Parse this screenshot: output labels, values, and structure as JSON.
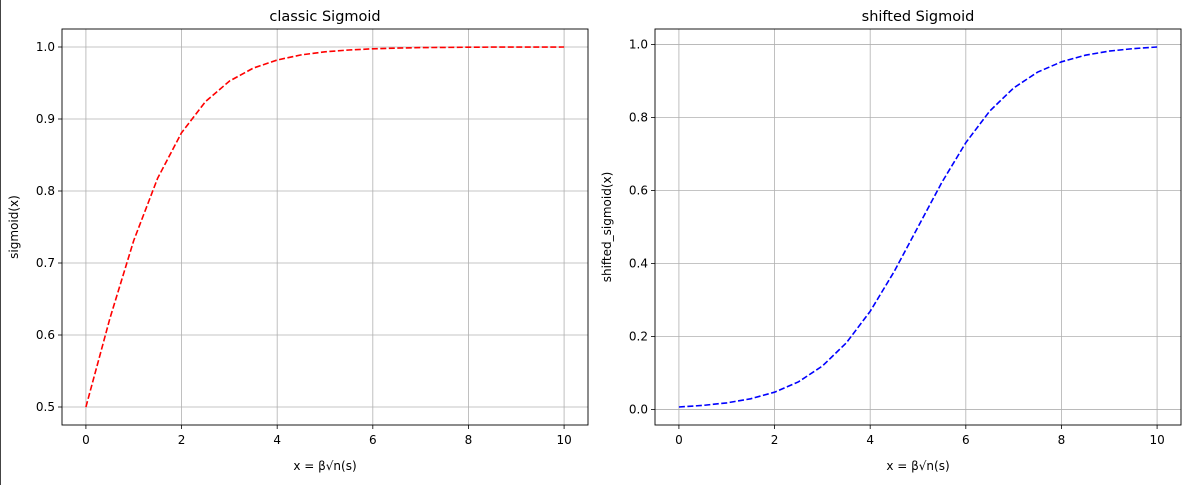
{
  "chart_data": [
    {
      "type": "line",
      "title": "classic Sigmoid",
      "xlabel": "x = β√n(s)",
      "ylabel": "sigmoid(x)",
      "xlim": [
        -0.5,
        10.5
      ],
      "ylim": [
        0.475,
        1.025
      ],
      "xticks": [
        0,
        2,
        4,
        6,
        8,
        10
      ],
      "xtick_labels": [
        "0",
        "2",
        "4",
        "6",
        "8",
        "10"
      ],
      "yticks": [
        0.5,
        0.6,
        0.7,
        0.8,
        0.9,
        1.0
      ],
      "ytick_labels": [
        "0.5",
        "0.6",
        "0.7",
        "0.8",
        "0.9",
        "1.0"
      ],
      "grid": true,
      "series": [
        {
          "name": "sigmoid",
          "color": "#ff0000",
          "style": "dashed",
          "x": [
            0,
            0.5,
            1,
            1.5,
            2,
            2.5,
            3,
            3.5,
            4,
            4.5,
            5,
            5.5,
            6,
            6.5,
            7,
            7.5,
            8,
            8.5,
            9,
            9.5,
            10
          ],
          "y": [
            0.5,
            0.6225,
            0.7311,
            0.8176,
            0.8808,
            0.9241,
            0.9526,
            0.9707,
            0.982,
            0.989,
            0.9933,
            0.9959,
            0.9975,
            0.9985,
            0.9991,
            0.9994,
            0.9997,
            0.9998,
            0.9999,
            0.9999,
            1.0
          ]
        }
      ]
    },
    {
      "type": "line",
      "title": "shifted Sigmoid",
      "xlabel": "x = β√n(s)",
      "ylabel": "shifted_sigmoid(x)",
      "xlim": [
        -0.5,
        10.5
      ],
      "ylim": [
        -0.0426,
        1.0426
      ],
      "xticks": [
        0,
        2,
        4,
        6,
        8,
        10
      ],
      "xtick_labels": [
        "0",
        "2",
        "4",
        "6",
        "8",
        "10"
      ],
      "yticks": [
        0.0,
        0.2,
        0.4,
        0.6,
        0.8,
        1.0
      ],
      "ytick_labels": [
        "0.0",
        "0.2",
        "0.4",
        "0.6",
        "0.8",
        "1.0"
      ],
      "grid": true,
      "series": [
        {
          "name": "shifted_sigmoid",
          "color": "#0000ff",
          "style": "dashed",
          "x": [
            0,
            0.5,
            1,
            1.5,
            2,
            2.5,
            3,
            3.5,
            4,
            4.5,
            5,
            5.5,
            6,
            6.5,
            7,
            7.5,
            8,
            8.5,
            9,
            9.5,
            10
          ],
          "y": [
            0.0067,
            0.011,
            0.018,
            0.0293,
            0.0474,
            0.0759,
            0.1192,
            0.1824,
            0.2689,
            0.3775,
            0.5,
            0.6225,
            0.7311,
            0.8176,
            0.8808,
            0.9241,
            0.9526,
            0.9707,
            0.982,
            0.989,
            0.9933
          ]
        }
      ]
    }
  ]
}
